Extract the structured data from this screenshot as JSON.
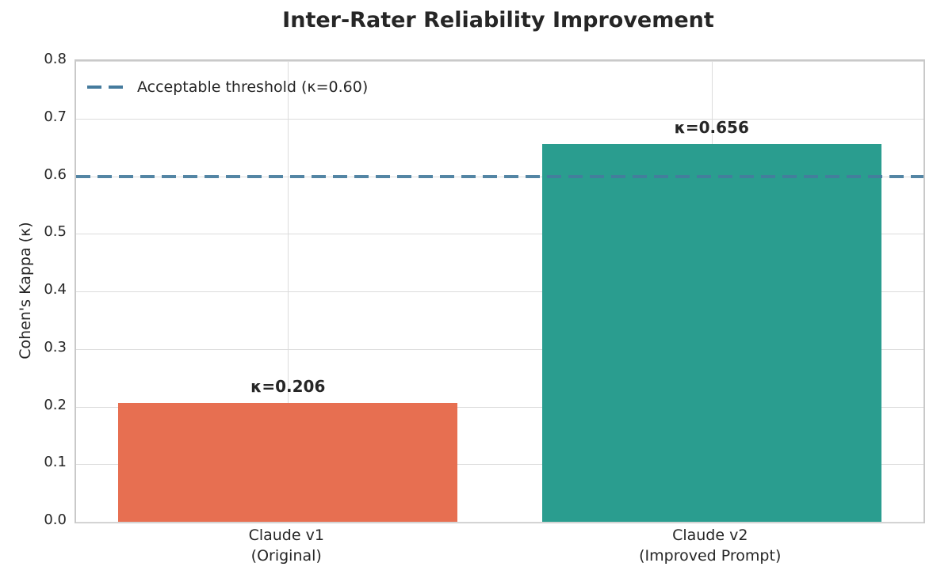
{
  "chart_data": {
    "type": "bar",
    "title": "Inter-Rater Reliability Improvement",
    "ylabel": "Cohen's Kappa (κ)",
    "xlabel": "",
    "categories": [
      [
        "Claude v1",
        "(Original)"
      ],
      [
        "Claude v2",
        "(Improved Prompt)"
      ]
    ],
    "values": [
      0.206,
      0.656
    ],
    "bar_labels": [
      "κ=0.206",
      "κ=0.656"
    ],
    "bar_colors": [
      "#E76F51",
      "#2A9D8F"
    ],
    "ylim": [
      0,
      0.8
    ],
    "yticks": [
      0.0,
      0.1,
      0.2,
      0.3,
      0.4,
      0.5,
      0.6,
      0.7,
      0.8
    ],
    "grid": true,
    "legend": {
      "label": "Acceptable threshold (κ=0.60)",
      "position": "upper left"
    },
    "threshold": {
      "value": 0.6,
      "color": "#457B9D",
      "style": "dashed"
    }
  },
  "colors": {
    "background": "#FFFFFF",
    "grid": "#DCDCDC",
    "spine": "#C9C9C9",
    "text": "#262626",
    "bar_claude_v1": "#E76F51",
    "bar_claude_v2": "#2A9D8F",
    "threshold": "#457B9D"
  }
}
